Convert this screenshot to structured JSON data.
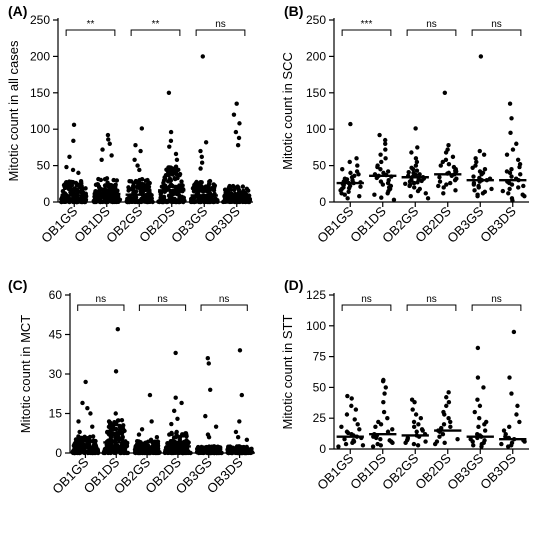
{
  "chart_data": [
    {
      "type": "scatter",
      "panel_label": "(A)",
      "ylabel": "Mitotic count in all cases",
      "categories": [
        "OB1GS",
        "OB1DS",
        "OB2GS",
        "OB2DS",
        "OB3GS",
        "OB3DS"
      ],
      "ylim": [
        0,
        250
      ],
      "yticks": [
        0,
        50,
        100,
        150,
        200,
        250
      ],
      "medians": [
        9,
        11,
        10,
        16,
        9,
        7
      ],
      "outliers": [
        [
          106,
          84,
          62,
          48,
          44,
          40
        ],
        [
          92,
          86,
          80,
          72,
          64,
          58
        ],
        [
          101,
          78,
          70,
          58,
          50,
          44
        ],
        [
          150,
          96,
          84,
          76,
          66,
          58
        ],
        [
          200,
          82,
          70,
          62,
          54,
          46
        ],
        [
          135,
          120,
          108,
          96,
          88,
          78
        ]
      ],
      "comparisons": [
        {
          "groups": [
            "OB1GS",
            "OB1DS"
          ],
          "label": "**"
        },
        {
          "groups": [
            "OB2GS",
            "OB2DS"
          ],
          "label": "**"
        },
        {
          "groups": [
            "OB3GS",
            "OB3DS"
          ],
          "label": "ns"
        }
      ]
    },
    {
      "type": "scatter",
      "panel_label": "(B)",
      "ylabel": "Mitotic count in SCC",
      "categories": [
        "OB1GS",
        "OB1DS",
        "OB2GS",
        "OB2DS",
        "OB3GS",
        "OB3DS"
      ],
      "ylim": [
        0,
        250
      ],
      "yticks": [
        0,
        50,
        100,
        150,
        200,
        250
      ],
      "medians": [
        26,
        36,
        34,
        38,
        30,
        30
      ],
      "points": [
        [
          107,
          60,
          55,
          50,
          45,
          42,
          40,
          38,
          36,
          34,
          32,
          31,
          30,
          29,
          28,
          27,
          26,
          26,
          25,
          24,
          23,
          22,
          21,
          20,
          19,
          18,
          16,
          14,
          12,
          10,
          8,
          5
        ],
        [
          92,
          85,
          80,
          72,
          65,
          60,
          55,
          50,
          48,
          45,
          42,
          40,
          38,
          37,
          36,
          35,
          33,
          30,
          28,
          26,
          24,
          22,
          20,
          18,
          15,
          12,
          10,
          6,
          3
        ],
        [
          101,
          75,
          68,
          60,
          55,
          50,
          47,
          45,
          43,
          41,
          40,
          38,
          37,
          36,
          35,
          34,
          33,
          32,
          31,
          30,
          29,
          28,
          27,
          26,
          25,
          24,
          22,
          20,
          18,
          15,
          12,
          8,
          5
        ],
        [
          150,
          78,
          72,
          68,
          62,
          58,
          55,
          52,
          50,
          48,
          45,
          43,
          42,
          40,
          39,
          38,
          36,
          34,
          32,
          30,
          28,
          26,
          24,
          22,
          20,
          16,
          12
        ],
        [
          200,
          70,
          65,
          60,
          55,
          50,
          47,
          45,
          42,
          40,
          38,
          35,
          33,
          32,
          30,
          30,
          28,
          26,
          24,
          22,
          20,
          18,
          16,
          14,
          12,
          10,
          8
        ],
        [
          135,
          115,
          95,
          80,
          72,
          65,
          58,
          52,
          48,
          45,
          42,
          40,
          38,
          35,
          32,
          30,
          28,
          26,
          24,
          22,
          20,
          18,
          15,
          12,
          10,
          8,
          5,
          2
        ]
      ],
      "comparisons": [
        {
          "groups": [
            "OB1GS",
            "OB1DS"
          ],
          "label": "***"
        },
        {
          "groups": [
            "OB2GS",
            "OB2DS"
          ],
          "label": "ns"
        },
        {
          "groups": [
            "OB3GS",
            "OB3DS"
          ],
          "label": "ns"
        }
      ]
    },
    {
      "type": "scatter",
      "panel_label": "(C)",
      "ylabel": "Mitotic count in MCT",
      "categories": [
        "OB1GS",
        "OB1DS",
        "OB2GS",
        "OB2DS",
        "OB3GS",
        "OB3DS"
      ],
      "ylim": [
        0,
        60
      ],
      "yticks": [
        0,
        15,
        30,
        45,
        60
      ],
      "medians": [
        2,
        4,
        1.5,
        2.5,
        0.8,
        0.8
      ],
      "outliers": [
        [
          27,
          19,
          17,
          15,
          12,
          10,
          8
        ],
        [
          47,
          31,
          15,
          12,
          11,
          10,
          9,
          8
        ],
        [
          22,
          12,
          9,
          7,
          6,
          5
        ],
        [
          38,
          21,
          19,
          16,
          13,
          11,
          8
        ],
        [
          36,
          34,
          24,
          14,
          10,
          7,
          6
        ],
        [
          39,
          22,
          12,
          8,
          6,
          5
        ]
      ],
      "comparisons": [
        {
          "groups": [
            "OB1GS",
            "OB1DS"
          ],
          "label": "ns"
        },
        {
          "groups": [
            "OB2GS",
            "OB2DS"
          ],
          "label": "ns"
        },
        {
          "groups": [
            "OB3GS",
            "OB3DS"
          ],
          "label": "ns"
        }
      ]
    },
    {
      "type": "scatter",
      "panel_label": "(D)",
      "ylabel": "Mitotic count in STT",
      "categories": [
        "OB1GS",
        "OB1DS",
        "OB2GS",
        "OB2DS",
        "OB3GS",
        "OB3DS"
      ],
      "ylim": [
        0,
        125
      ],
      "yticks": [
        0,
        25,
        50,
        75,
        100,
        125
      ],
      "medians": [
        10,
        12,
        11,
        15,
        10,
        8
      ],
      "points": [
        [
          43,
          41,
          35,
          32,
          28,
          24,
          20,
          18,
          16,
          14,
          13,
          12,
          11,
          10,
          9,
          8,
          7,
          6,
          5,
          4,
          3,
          2
        ],
        [
          56,
          55,
          50,
          45,
          38,
          30,
          25,
          22,
          20,
          18,
          16,
          14,
          12,
          11,
          10,
          9,
          8,
          7,
          6,
          5,
          4,
          3,
          2
        ],
        [
          40,
          38,
          32,
          28,
          25,
          22,
          20,
          18,
          16,
          15,
          14,
          12,
          11,
          10,
          9,
          8,
          7,
          6,
          5,
          4,
          3
        ],
        [
          46,
          42,
          38,
          35,
          30,
          28,
          25,
          22,
          20,
          18,
          17,
          16,
          15,
          14,
          12,
          10,
          8,
          6,
          5,
          4
        ],
        [
          82,
          58,
          50,
          40,
          35,
          30,
          25,
          22,
          20,
          18,
          15,
          12,
          11,
          10,
          9,
          8,
          7,
          6,
          5,
          4,
          3,
          2
        ],
        [
          95,
          58,
          45,
          35,
          28,
          22,
          18,
          15,
          12,
          10,
          9,
          8,
          7,
          6,
          5,
          4,
          3,
          2
        ]
      ],
      "comparisons": [
        {
          "groups": [
            "OB1GS",
            "OB1DS"
          ],
          "label": "ns"
        },
        {
          "groups": [
            "OB2GS",
            "OB2DS"
          ],
          "label": "ns"
        },
        {
          "groups": [
            "OB3GS",
            "OB3DS"
          ],
          "label": "ns"
        }
      ]
    }
  ]
}
